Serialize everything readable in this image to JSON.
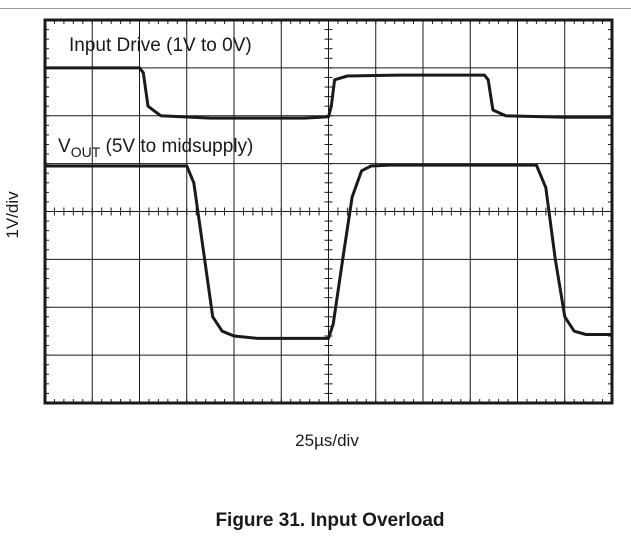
{
  "page": {
    "figure_caption": "Figure 31. Input Overload"
  },
  "chart_data": {
    "type": "line",
    "title": "Figure 31. Input Overload",
    "xlabel": "25µs/div",
    "ylabel": "1V/div",
    "divisions": {
      "x": 12,
      "y": 8
    },
    "xlim": [
      0,
      12
    ],
    "ylim": [
      0,
      8
    ],
    "x_units": "div",
    "y_units": "div",
    "grid": true,
    "series": [
      {
        "name": "Input Drive (1V to 0V)",
        "label_main": "Input Drive (1V to 0V)",
        "color": "#1a1a1a",
        "x": [
          0,
          2.0,
          2.08,
          2.18,
          2.45,
          3.5,
          5.5,
          6.0,
          6.06,
          6.13,
          6.4,
          7.5,
          9.3,
          9.38,
          9.48,
          9.75,
          11.0,
          12
        ],
        "y": [
          7.0,
          7.0,
          6.9,
          6.2,
          6.0,
          5.95,
          5.95,
          5.98,
          6.2,
          6.75,
          6.83,
          6.85,
          6.85,
          6.75,
          6.12,
          6.0,
          5.97,
          5.97
        ]
      },
      {
        "name": "VOUT (5V to midsupply)",
        "label_main": "V",
        "label_sub": "OUT",
        "label_rest": " (5V to midsupply)",
        "color": "#1a1a1a",
        "x": [
          0,
          3.0,
          3.15,
          3.35,
          3.55,
          3.75,
          4.0,
          4.5,
          6.0,
          6.1,
          6.3,
          6.5,
          6.7,
          6.9,
          7.3,
          10.4,
          10.6,
          10.8,
          11.0,
          11.2,
          11.45,
          12
        ],
        "y": [
          4.95,
          4.95,
          4.6,
          3.2,
          1.8,
          1.5,
          1.4,
          1.35,
          1.35,
          1.65,
          3.0,
          4.3,
          4.85,
          4.95,
          4.97,
          4.97,
          4.5,
          3.0,
          1.8,
          1.5,
          1.43,
          1.43
        ]
      }
    ]
  }
}
